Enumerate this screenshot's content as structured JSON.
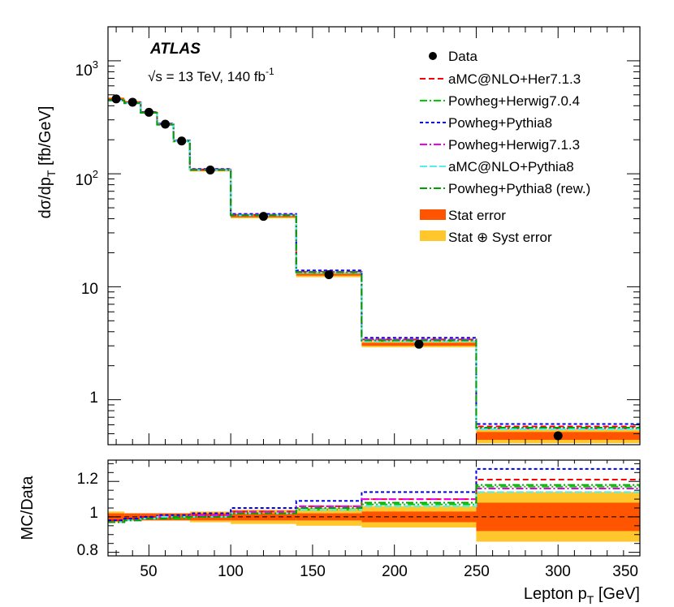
{
  "chart_data": {
    "type": "line",
    "title": "ATLAS",
    "subtitle": "√s = 13 TeV, 140 fb⁻¹",
    "subtitle_parts": {
      "sqrt_symbol": "√",
      "s_label": "s",
      "energy_text": " = 13 TeV, 140 fb",
      "lumi_superscript": "-1"
    },
    "bin_edges": [
      25,
      35,
      45,
      55,
      65,
      75,
      100,
      140,
      180,
      250,
      350
    ],
    "xlabel": "Lepton p",
    "xlabel_sub": "T",
    "xlabel_unit": " [GeV]",
    "xlim": [
      25,
      350
    ],
    "xticks": [
      50,
      100,
      150,
      200,
      250,
      300,
      350
    ],
    "main_panel": {
      "ylabel": "dσ/dp",
      "ylabel_sub": "T",
      "ylabel_unit": " [fb/GeV]",
      "yscale": "log",
      "ylim": [
        0.4,
        2000
      ],
      "ytick_labels": [
        {
          "value": 1000,
          "base": "10",
          "exp": "3"
        },
        {
          "value": 100,
          "base": "10",
          "exp": "2"
        },
        {
          "value": 10,
          "base": "10",
          "exp": ""
        },
        {
          "value": 1,
          "base": "1",
          "exp": ""
        }
      ],
      "data": {
        "name": "Data",
        "x": [
          30,
          40,
          50,
          60,
          70,
          87.5,
          120,
          160,
          215,
          300
        ],
        "y": [
          460,
          430,
          350,
          275,
          195,
          108,
          42,
          12.8,
          3.1,
          0.48
        ]
      },
      "stat_error": [
        0.02,
        0.02,
        0.02,
        0.02,
        0.02,
        0.02,
        0.02,
        0.02,
        0.03,
        0.08
      ],
      "syst_error": [
        0.03,
        0.02,
        0.02,
        0.02,
        0.02,
        0.03,
        0.04,
        0.05,
        0.06,
        0.14
      ]
    },
    "ratio_panel": {
      "ylabel": "MC/Data",
      "ylim": [
        0.78,
        1.32
      ],
      "yticks": [
        0.8,
        1,
        1.2
      ],
      "ytick_labels": [
        "0.8",
        "1",
        "1.2"
      ]
    },
    "series": [
      {
        "name": "aMC@NLO+Her7.1.3",
        "color": "#ff0000",
        "dash": "7,4",
        "ratio": [
          0.98,
          0.99,
          1.0,
          1.0,
          1.0,
          1.01,
          1.03,
          1.06,
          1.1,
          1.21
        ]
      },
      {
        "name": "Powheg+Herwig7.0.4",
        "color": "#00cc00",
        "dash": "9,3,2,3",
        "ratio": [
          0.97,
          0.98,
          0.99,
          0.99,
          0.99,
          1.0,
          1.02,
          1.04,
          1.07,
          1.17
        ]
      },
      {
        "name": "Powheg+Pythia8",
        "color": "#0000ee",
        "dash": "4,3",
        "ratio": [
          0.98,
          0.99,
          1.0,
          1.01,
          1.01,
          1.02,
          1.05,
          1.09,
          1.14,
          1.27
        ]
      },
      {
        "name": "Powheg+Herwig7.1.3",
        "color": "#ee00ee",
        "dash": "9,3,2,3",
        "ratio": [
          0.97,
          0.98,
          0.99,
          1.0,
          1.0,
          1.01,
          1.03,
          1.06,
          1.1,
          1.16
        ]
      },
      {
        "name": "aMC@NLO+Pythia8",
        "color": "#55eeee",
        "dash": "9,3",
        "ratio": [
          0.97,
          0.98,
          0.99,
          1.0,
          1.0,
          1.0,
          1.02,
          1.04,
          1.06,
          1.14
        ]
      },
      {
        "name": "Powheg+Pythia8 (rew.)",
        "color": "#00a000",
        "dash": "9,3,2,3",
        "ratio": [
          0.97,
          0.98,
          0.99,
          0.99,
          1.0,
          1.0,
          1.02,
          1.05,
          1.08,
          1.18
        ]
      }
    ],
    "legend": {
      "placement": "top-right",
      "data_label": "Data",
      "stat_label": "Stat error",
      "syst_label": "Stat ⊕ Syst error",
      "stat_color": "#ff5500",
      "syst_color": "#ffc72c"
    }
  }
}
